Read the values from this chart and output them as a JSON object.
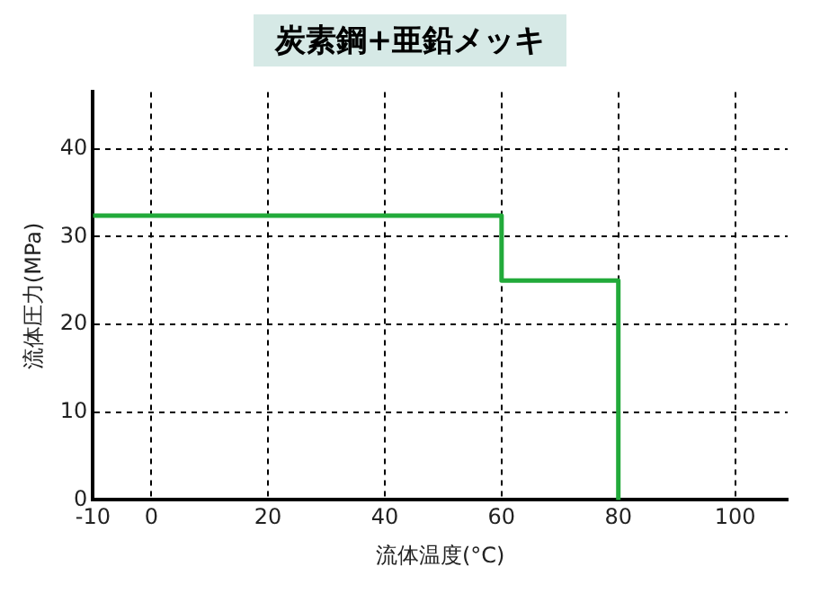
{
  "chart_data": {
    "type": "line",
    "title": "炭素鋼+亜鉛メッキ",
    "xlabel": "流体温度(°C)",
    "ylabel": "流体圧力(MPa)",
    "x": [
      -10,
      60,
      60,
      80,
      80
    ],
    "series": [
      {
        "color": "#22aa3a",
        "values": [
          32.4,
          32.4,
          25,
          25,
          0
        ]
      }
    ],
    "xlim": [
      -10,
      109
    ],
    "xticks": [
      -10,
      0,
      20,
      40,
      60,
      80,
      100
    ],
    "ylim": [
      0,
      46.5
    ],
    "yticks": [
      0,
      10,
      20,
      30,
      40
    ],
    "grid": true,
    "legend": false,
    "marker": "none",
    "line_style": "solid"
  }
}
